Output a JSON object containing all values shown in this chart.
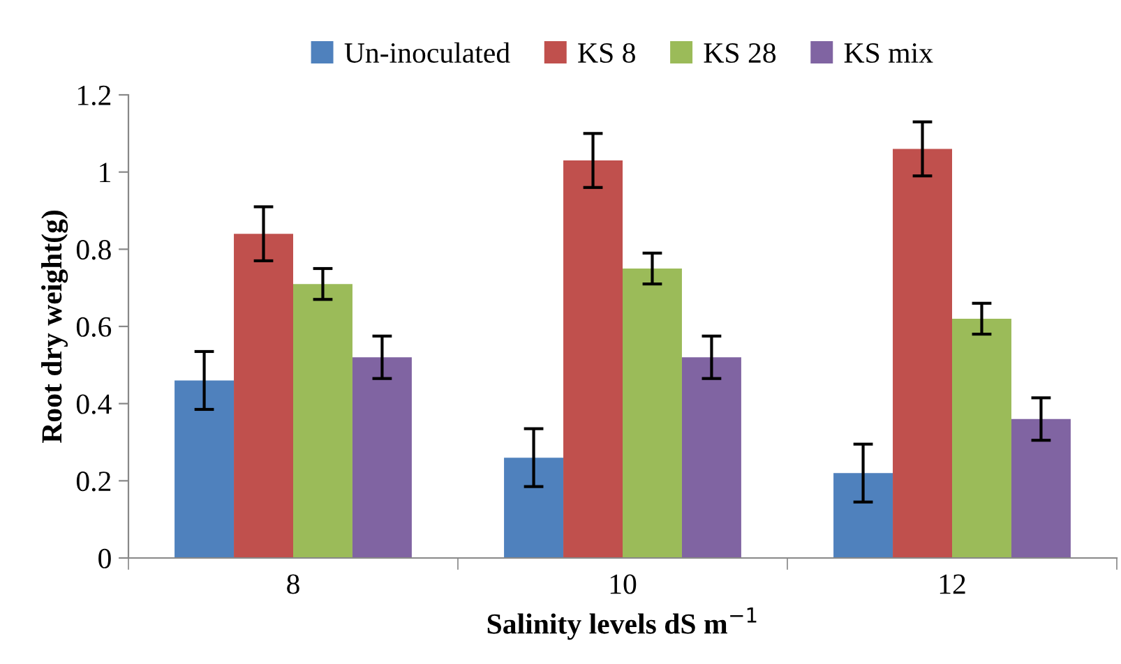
{
  "chart_data": {
    "type": "bar",
    "xlabel": "Salinity levels dS m$^{−1}$",
    "ylabel": "Root dry weight(g)",
    "categories": [
      "8",
      "10",
      "12"
    ],
    "series": [
      {
        "name": "Un-inoculated",
        "color": "#4f81bd",
        "values": [
          0.46,
          0.26,
          0.22
        ],
        "errors": [
          0.075,
          0.075,
          0.075
        ]
      },
      {
        "name": "KS 8",
        "color": "#c0504d",
        "values": [
          0.84,
          1.03,
          1.06
        ],
        "errors": [
          0.07,
          0.07,
          0.07
        ]
      },
      {
        "name": "KS 28",
        "color": "#9bbb59",
        "values": [
          0.71,
          0.75,
          0.62
        ],
        "errors": [
          0.04,
          0.04,
          0.04
        ]
      },
      {
        "name": "KS mix",
        "color": "#8064a2",
        "values": [
          0.52,
          0.52,
          0.36
        ],
        "errors": [
          0.055,
          0.055,
          0.055
        ]
      }
    ],
    "ylim": [
      0,
      1.2
    ],
    "yticks": [
      0,
      {
        "value": 0.2,
        "label": "0.2"
      },
      {
        "value": 0.4,
        "label": "0.4"
      },
      {
        "value": 0.6,
        "label": "0.6"
      },
      {
        "value": 0.8,
        "label": "0.8"
      },
      {
        "value": 1,
        "label": "1"
      },
      {
        "value": 1.2,
        "label": "1.2"
      }
    ],
    "grid": false,
    "legend": "top"
  }
}
